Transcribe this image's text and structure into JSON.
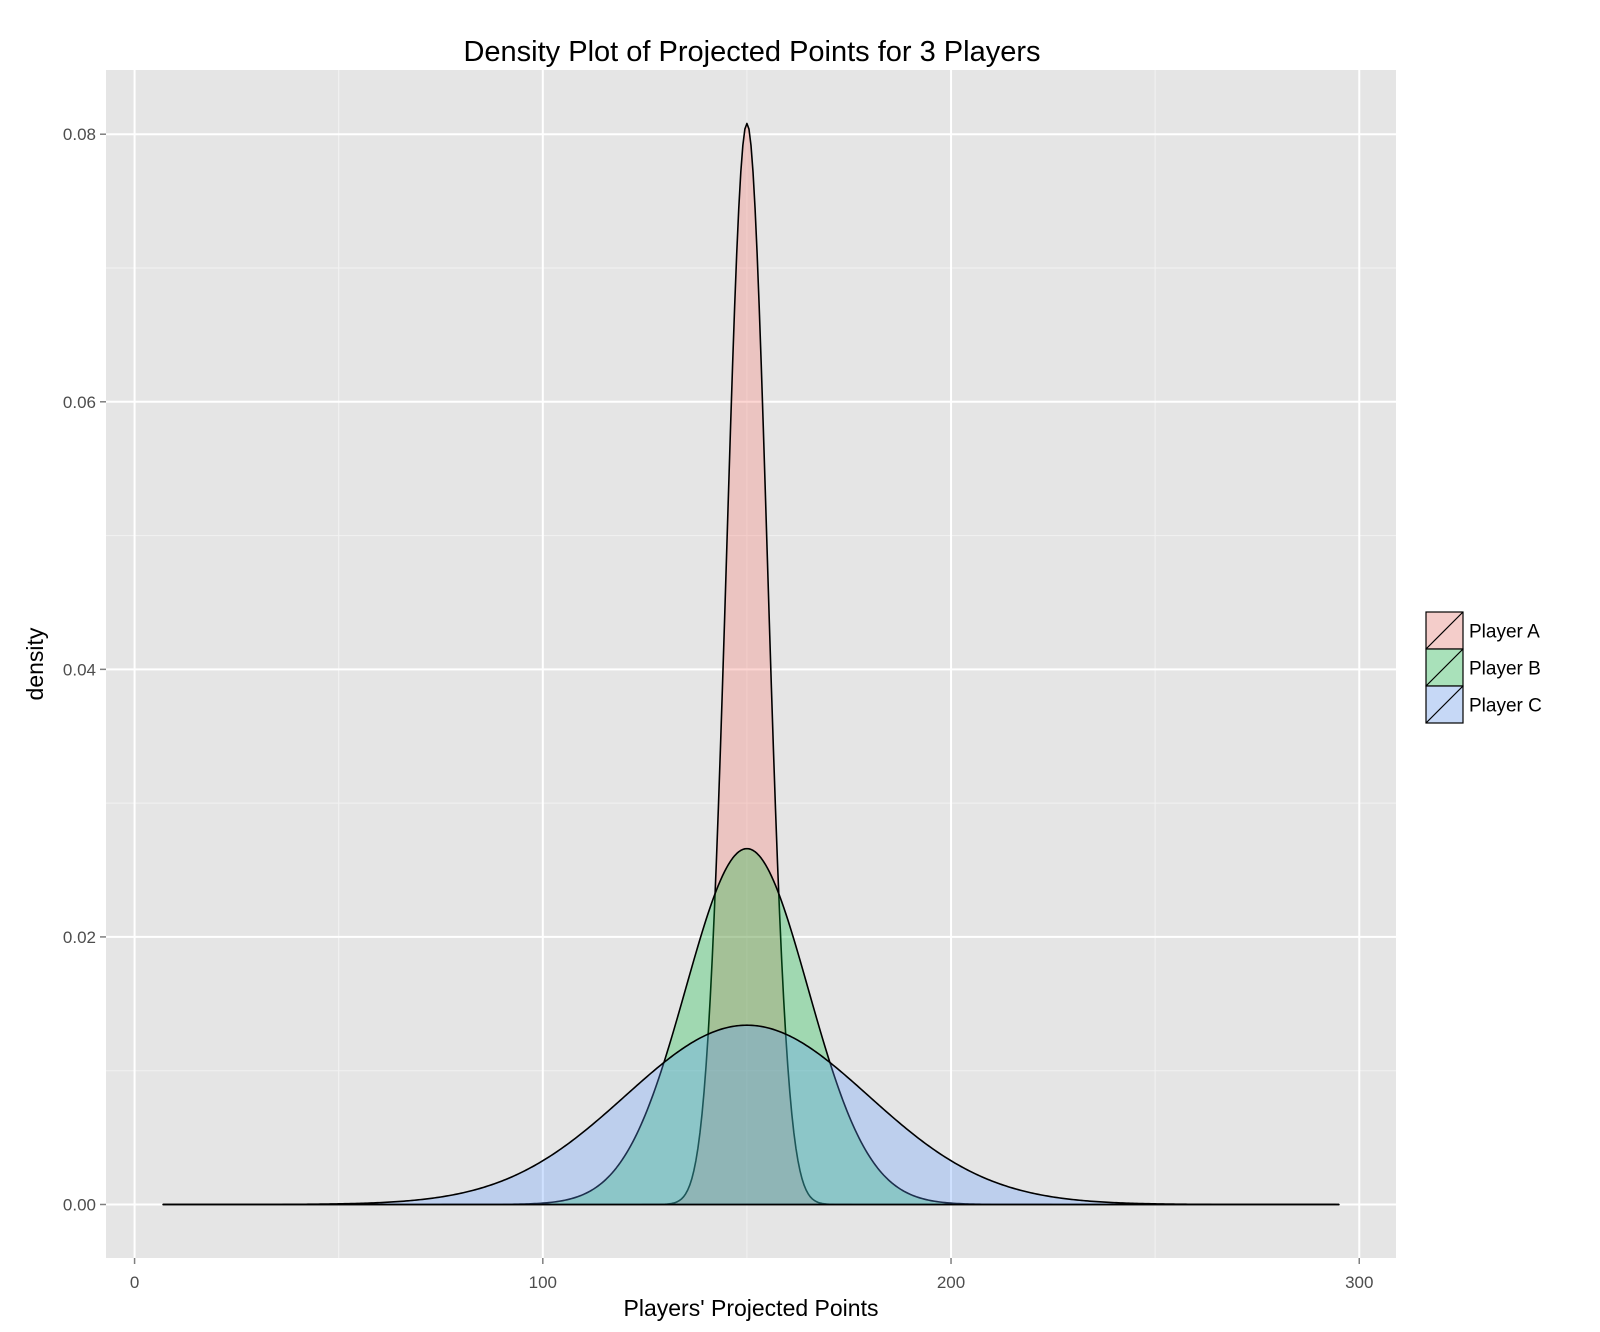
{
  "chart_data": {
    "type": "area",
    "title": "Density Plot of Projected Points for 3 Players",
    "xlabel": "Players' Projected Points",
    "ylabel": "density",
    "xlim": [
      -7,
      309
    ],
    "ylim": [
      -0.004,
      0.0848
    ],
    "x_ticks": [
      0,
      100,
      200,
      300
    ],
    "x_tick_labels": [
      "0",
      "100",
      "200",
      "300"
    ],
    "y_ticks": [
      0,
      0.02,
      0.04,
      0.06,
      0.08
    ],
    "y_tick_labels": [
      "0.00",
      "0.02",
      "0.04",
      "0.06",
      "0.08"
    ],
    "grid": true,
    "legend_position": "right",
    "x_range": [
      7,
      295
    ],
    "series": [
      {
        "name": "Player A",
        "mean": 150,
        "peak": 0.0808,
        "fill": "#f8766d"
      },
      {
        "name": "Player B",
        "mean": 150,
        "peak": 0.0266,
        "fill": "#00ba38"
      },
      {
        "name": "Player C",
        "mean": 150,
        "peak": 0.0134,
        "fill": "#619cff"
      }
    ]
  }
}
